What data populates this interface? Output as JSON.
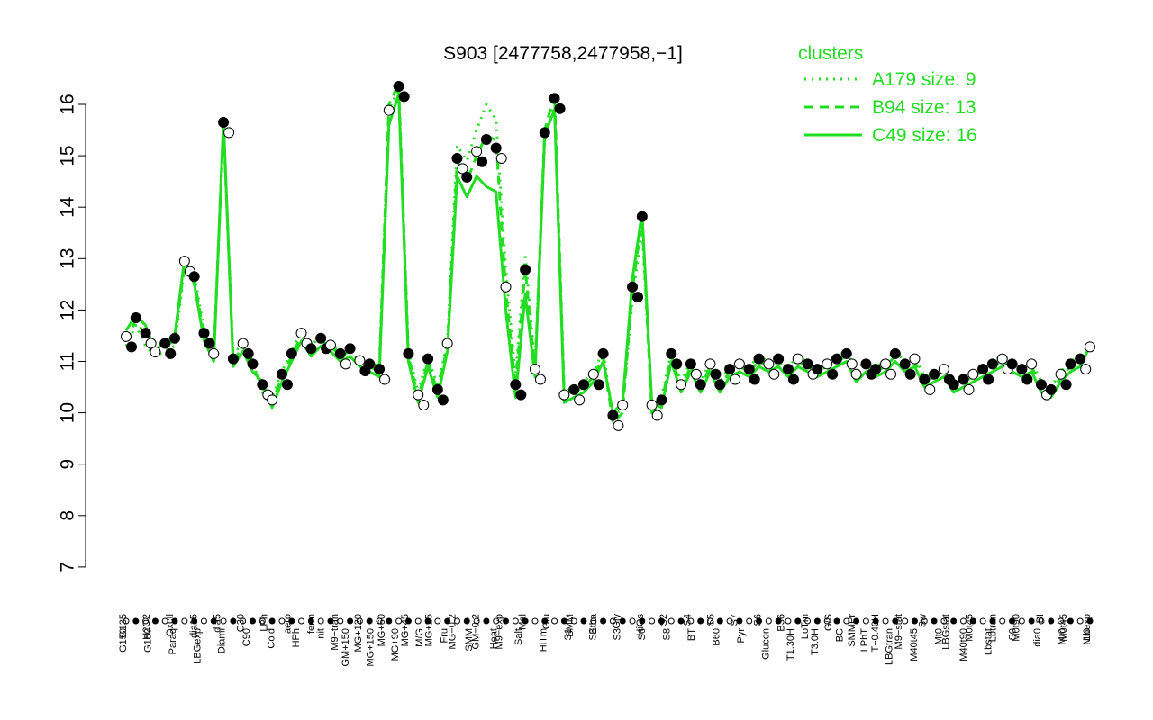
{
  "chart_data": {
    "type": "line",
    "title": "S903 [2477758,2477958,−1]",
    "xlabel": "",
    "ylabel": "",
    "ylim": [
      7,
      16.5
    ],
    "yticks": [
      7,
      8,
      9,
      10,
      11,
      12,
      13,
      14,
      15,
      16
    ],
    "grid": false,
    "legend": {
      "title": "clusters",
      "placement": "top-right",
      "entries": [
        {
          "label": "A179 size: 9",
          "style": "dotted"
        },
        {
          "label": "B94 size: 13",
          "style": "dashed"
        },
        {
          "label": "C49 size: 16",
          "style": "solid"
        }
      ]
    },
    "colors": {
      "line": "#22dd22",
      "points": "#000000"
    },
    "x_labels_upper": [
      "G135",
      "H2O2",
      "Oxctl",
      "dia15",
      "dia5",
      "C30",
      "LPh",
      "aero",
      "ferm",
      "M9−tran",
      "MG+120",
      "MG+60",
      "MG+45",
      "MG+25",
      "MG−0.2",
      "GM−0.2",
      "M9−exp",
      "Mal",
      "Glu",
      "BMM",
      "Etha",
      "Gly",
      "HiOs",
      "S2",
      "S4",
      "S5",
      "S7",
      "S6",
      "B36",
      "LoTm",
      "G/S",
      "SMMPr",
      "T−0.40H",
      "M9−stat",
      "Sw",
      "LBGstat",
      "M0t45",
      "Lbtran",
      "M0t90",
      "BI",
      "M0t45",
      "Lbexp"
    ],
    "x_labels_lower": [
      "G150",
      "G180",
      "Paraq",
      "LBGexp",
      "Diami",
      "C90",
      "Cold",
      "HPh",
      "nit",
      "GM+150",
      "MG+150",
      "MG+90",
      "M/G",
      "Fru",
      "SMM",
      "Heat",
      "Salt",
      "HiTm",
      "S1",
      "S3",
      "S3",
      "S6",
      "S8",
      "BT",
      "B60",
      "Pyr",
      "Glucon",
      "T1.30H",
      "T3.0H",
      "BC",
      "LPhT",
      "LBGtran",
      "M40t45",
      "Mt0",
      "M40t90",
      "Lbstat",
      "S0",
      "dia0",
      "Mt0",
      "Mt0"
    ],
    "x": [
      1,
      2,
      3,
      4,
      5,
      6,
      7,
      8,
      9,
      10,
      11,
      12,
      13,
      14,
      15,
      16,
      17,
      18,
      19,
      20,
      21,
      22,
      23,
      24,
      25,
      26,
      27,
      28,
      29,
      30,
      31,
      32,
      33,
      34,
      35,
      36,
      37,
      38,
      39,
      40,
      41,
      42,
      43,
      44,
      45,
      46,
      47,
      48,
      49,
      50,
      51,
      52,
      53,
      54,
      55,
      56,
      57,
      58,
      59,
      60,
      61,
      62,
      63,
      64,
      65,
      66,
      67,
      68,
      69,
      70,
      71,
      72,
      73,
      74,
      75,
      76,
      77,
      78,
      79,
      80,
      81,
      82,
      83,
      84,
      85,
      86,
      87,
      88,
      89,
      90,
      91,
      92,
      93,
      94,
      95,
      96,
      97,
      98,
      99,
      100
    ],
    "series": [
      {
        "style": "dotted",
        "values": [
          11.3,
          11.7,
          11.3,
          11.1,
          11.2,
          11.3,
          12.8,
          12.7,
          11.6,
          11.2,
          15.5,
          11.1,
          11.4,
          11.0,
          10.4,
          10.3,
          10.8,
          11.2,
          11.6,
          11.3,
          11.5,
          11.3,
          11.2,
          11.3,
          11.0,
          11.0,
          10.9,
          15.9,
          16.3,
          11.2,
          10.4,
          11.1,
          10.5,
          11.4,
          15.2,
          14.9,
          15.5,
          16.0,
          15.7,
          12.8,
          10.7,
          13.1,
          10.9,
          15.3,
          16.1,
          10.4,
          10.5,
          10.6,
          10.8,
          11.2,
          9.9,
          10.1,
          12.2,
          13.6,
          10.1,
          10.3,
          11.2,
          10.6,
          11.0,
          10.6,
          11.0,
          10.6,
          10.9,
          11.0,
          10.9,
          11.1,
          11.0,
          11.1,
          10.9,
          11.1,
          11.0,
          10.9,
          11.0,
          11.1,
          11.2,
          10.8,
          11.0,
          10.9,
          11.0,
          11.2,
          11.0,
          11.1,
          10.7,
          10.8,
          10.9,
          10.6,
          10.7,
          10.8,
          10.9,
          11.0,
          11.1,
          11.0,
          10.9,
          11.0,
          10.6,
          10.5,
          10.8,
          11.0,
          11.1,
          11.2
        ]
      },
      {
        "style": "dashed",
        "values": [
          11.4,
          11.8,
          11.5,
          11.1,
          11.3,
          11.4,
          12.9,
          12.6,
          11.5,
          11.1,
          15.6,
          11.0,
          11.3,
          10.9,
          10.5,
          10.2,
          10.7,
          11.1,
          11.5,
          11.2,
          11.4,
          11.3,
          11.1,
          11.2,
          11.0,
          10.9,
          10.8,
          16.0,
          16.4,
          11.1,
          10.3,
          11.0,
          10.4,
          11.3,
          14.9,
          14.5,
          15.0,
          15.4,
          15.3,
          12.4,
          10.5,
          12.8,
          10.8,
          15.5,
          16.2,
          10.3,
          10.4,
          10.5,
          10.7,
          11.1,
          9.8,
          10.0,
          12.4,
          13.8,
          10.0,
          10.2,
          11.1,
          10.5,
          10.9,
          10.5,
          10.9,
          10.5,
          10.8,
          10.9,
          10.8,
          11.0,
          10.9,
          11.0,
          10.8,
          11.0,
          10.9,
          10.8,
          10.9,
          11.0,
          11.1,
          10.7,
          10.9,
          10.8,
          10.9,
          11.1,
          10.9,
          11.0,
          10.6,
          10.7,
          10.8,
          10.5,
          10.6,
          10.7,
          10.8,
          10.9,
          11.0,
          10.9,
          10.8,
          10.9,
          10.5,
          10.4,
          10.7,
          10.9,
          11.0,
          11.2
        ]
      },
      {
        "style": "solid",
        "values": [
          11.6,
          11.9,
          11.7,
          11.2,
          11.4,
          11.5,
          13.0,
          12.5,
          11.4,
          11.0,
          15.7,
          10.9,
          11.2,
          10.8,
          10.6,
          10.1,
          10.6,
          11.0,
          11.4,
          11.1,
          11.3,
          11.2,
          11.0,
          11.1,
          10.9,
          10.8,
          10.7,
          15.6,
          16.2,
          11.0,
          10.2,
          10.9,
          10.3,
          11.2,
          14.6,
          14.2,
          14.6,
          14.4,
          14.3,
          12.0,
          10.3,
          12.3,
          10.7,
          15.4,
          15.9,
          10.2,
          10.3,
          10.4,
          10.6,
          11.0,
          10.0,
          10.2,
          12.6,
          13.9,
          10.2,
          10.1,
          11.0,
          10.4,
          10.8,
          10.4,
          10.8,
          10.4,
          10.7,
          10.8,
          10.7,
          10.9,
          10.8,
          10.9,
          10.7,
          10.9,
          10.8,
          10.7,
          10.8,
          10.9,
          11.0,
          10.6,
          10.8,
          10.7,
          10.8,
          11.0,
          10.8,
          10.9,
          10.5,
          10.6,
          10.7,
          10.4,
          10.5,
          10.6,
          10.7,
          10.8,
          10.9,
          10.8,
          10.7,
          10.8,
          10.4,
          10.3,
          10.6,
          10.8,
          10.9,
          11.3
        ]
      }
    ]
  }
}
